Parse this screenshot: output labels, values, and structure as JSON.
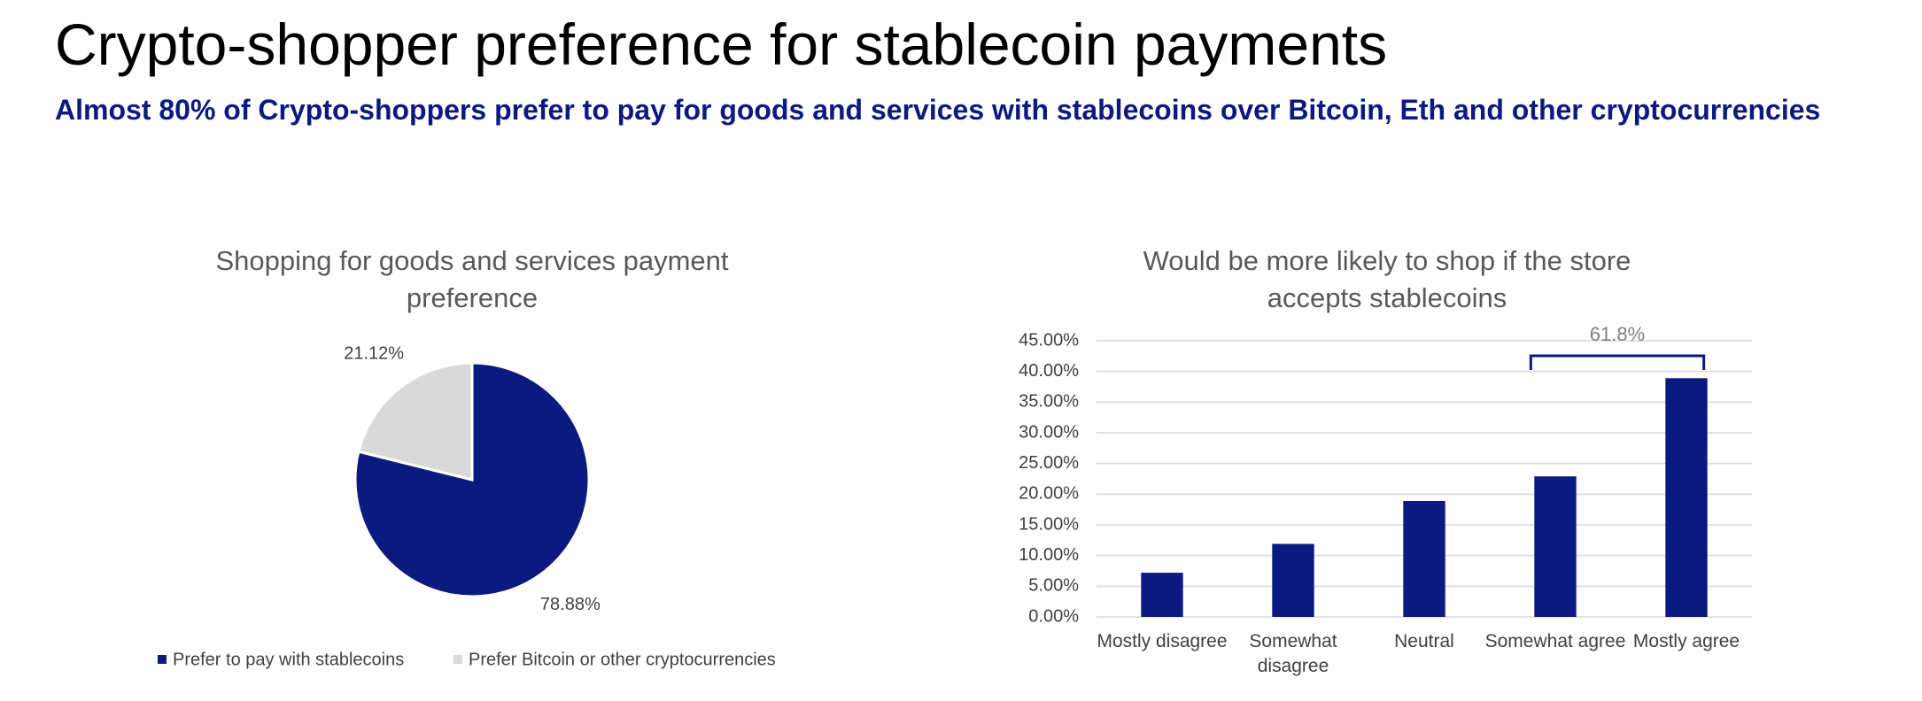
{
  "header": {
    "title": "Crypto-shopper preference for stablecoin payments",
    "subtitle": "Almost 80% of Crypto-shoppers prefer to pay for goods and services with stablecoins over Bitcoin, Eth and other cryptocurrencies"
  },
  "chart_data": [
    {
      "type": "pie",
      "title": "Shopping for goods and services payment preference",
      "categories": [
        "Prefer to pay with stablecoins",
        "Prefer Bitcoin or other cryptocurrencies"
      ],
      "values": [
        78.88,
        21.12
      ],
      "value_labels": [
        "78.88%",
        "21.12%"
      ],
      "colors": [
        "#0a1a80",
        "#d9d9d9"
      ],
      "legend": "bottom"
    },
    {
      "type": "bar",
      "title": "Would be more likely to shop if the store accepts stablecoins",
      "categories": [
        "Mostly disagree",
        "Somewhat disagree",
        "Neutral",
        "Somewhat agree",
        "Mostly agree"
      ],
      "values": [
        7.2,
        11.9,
        18.9,
        22.9,
        38.9
      ],
      "color": "#0a1a80",
      "ylim": [
        0,
        45
      ],
      "yticks": [
        {
          "value": 0,
          "label": "0.00%"
        },
        {
          "value": 5,
          "label": "5.00%"
        },
        {
          "value": 10,
          "label": "10.00%"
        },
        {
          "value": 15,
          "label": "15.00%"
        },
        {
          "value": 20,
          "label": "20.00%"
        },
        {
          "value": 25,
          "label": "25.00%"
        },
        {
          "value": 30,
          "label": "30.00%"
        },
        {
          "value": 35,
          "label": "35.00%"
        },
        {
          "value": 40,
          "label": "40.00%"
        },
        {
          "value": 45,
          "label": "45.00%"
        }
      ],
      "grid": true,
      "annotation": "61.8%"
    }
  ]
}
